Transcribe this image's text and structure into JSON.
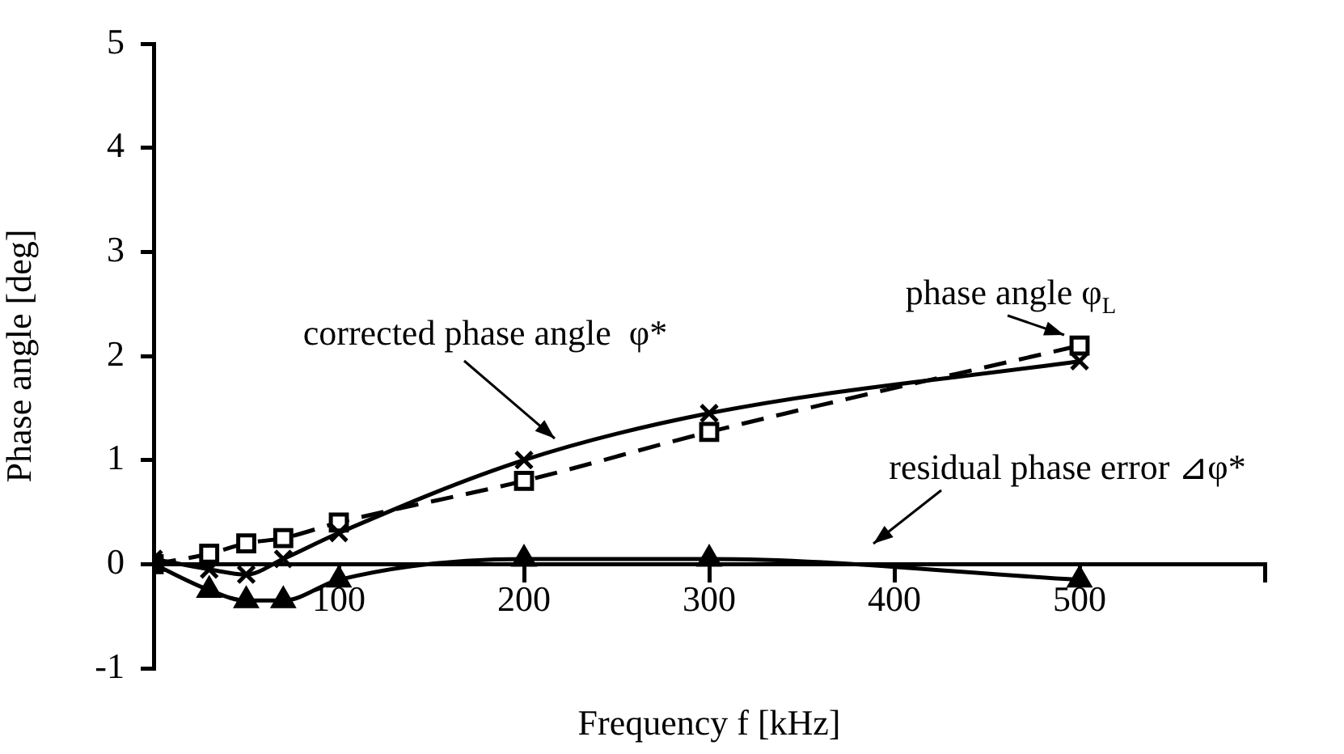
{
  "chart_data": {
    "type": "line",
    "xlabel": "Frequency f [kHz]",
    "ylabel": "Phase angle [deg]",
    "x": [
      0,
      30,
      50,
      70,
      100,
      200,
      300,
      500
    ],
    "series": [
      {
        "color": "#000000",
        "marker": "square",
        "line_style": "dashed",
        "values": [
          0,
          0.1,
          0.2,
          0.25,
          0.4,
          0.8,
          1.27,
          2.1
        ]
      },
      {
        "color": "#000000",
        "marker": "cross",
        "line_style": "solid",
        "values": [
          0.05,
          -0.05,
          -0.1,
          0.05,
          0.3,
          1.0,
          1.45,
          1.95
        ]
      },
      {
        "color": "#000000",
        "marker": "triangle",
        "line_style": "solid",
        "values": [
          0,
          -0.25,
          -0.35,
          -0.35,
          -0.15,
          0.05,
          0.05,
          -0.15
        ]
      }
    ],
    "xlim": [
      0,
      600
    ],
    "xticks": [
      100,
      200,
      300,
      400,
      500,
      {
        "value": 600,
        "label": null
      }
    ],
    "ylim": [
      -1,
      5
    ],
    "yticks": [
      -1,
      0,
      1,
      2,
      3,
      4,
      5
    ],
    "grid": false,
    "legend": false,
    "annotations": [
      "corrected phase angle  φ*",
      "phase angle φ$_{L}$",
      "residual phase error ⊿φ*"
    ]
  }
}
